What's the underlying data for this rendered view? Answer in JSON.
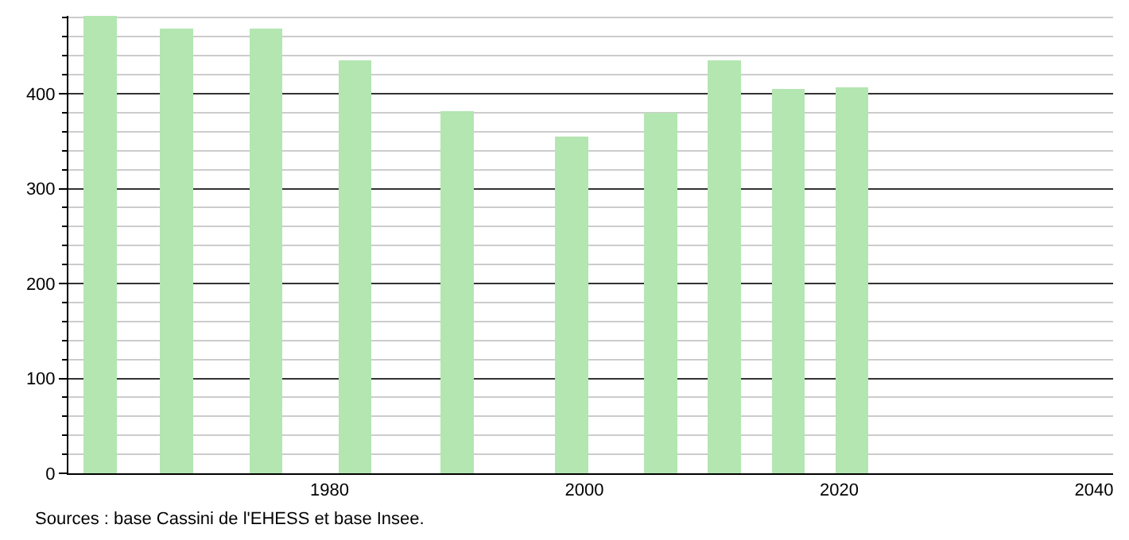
{
  "chart_data": {
    "type": "bar",
    "x": [
      1962,
      1968,
      1975,
      1982,
      1990,
      1999,
      2006,
      2011,
      2016,
      2021
    ],
    "values": [
      482,
      469,
      469,
      435,
      382,
      355,
      380,
      435,
      405,
      407
    ],
    "color": "#b3e6b1",
    "xlim": [
      1959.5,
      2041.5
    ],
    "xticks": [
      1980,
      2000,
      2020,
      2040
    ],
    "ylim": [
      0,
      482
    ],
    "yticks": [
      0,
      100,
      200,
      300,
      400
    ],
    "grid": "y",
    "annotations": [
      "Sources : base Cassini de l'EHESS et base Insee."
    ]
  }
}
